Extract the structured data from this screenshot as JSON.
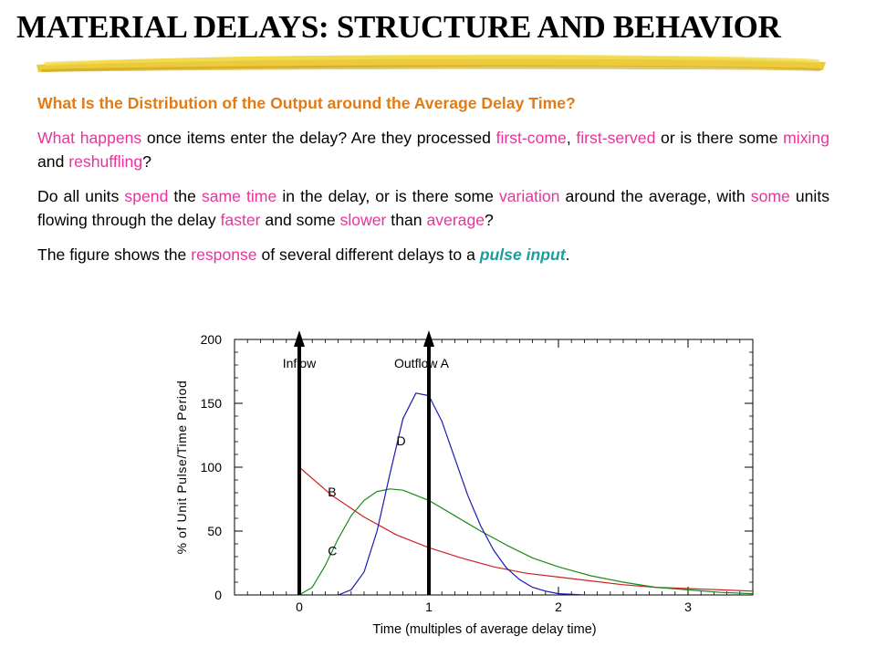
{
  "slide": {
    "title": "MATERIAL DELAYS: STRUCTURE AND BEHAVIOR",
    "accent_color": "#e8c21a",
    "question": "What Is the Distribution of the Output around the Average Delay Time?",
    "p1": [
      "What happens",
      " once items enter the delay? Are they processed ",
      "first-come",
      ", ",
      "first-served",
      " or is there some ",
      "mixing",
      " and ",
      "reshuffling",
      "?"
    ],
    "p2": [
      "Do all units ",
      "spend",
      " the ",
      "same time",
      " in the delay, or is there some ",
      "variation",
      " around the average, with ",
      "some",
      " units flowing through the delay ",
      "faster",
      " and some ",
      "slower",
      " than ",
      "average",
      "?"
    ],
    "p3": [
      "The figure shows the ",
      "response",
      " of several different delays to a ",
      "pulse input",
      "."
    ]
  },
  "chart_data": {
    "type": "line",
    "xlabel": "Time (multiples of average delay time)",
    "ylabel": "% of Unit Pulse/Time Period",
    "xlim": [
      -0.5,
      3.5
    ],
    "ylim": [
      0,
      200
    ],
    "xticks": [
      0,
      1,
      2,
      3
    ],
    "yticks": [
      0,
      50,
      100,
      150,
      200
    ],
    "grid": false,
    "series": [
      {
        "name": "B",
        "color": "#cc2222",
        "label_at": [
          0.22,
          77
        ],
        "x": [
          0,
          0.25,
          0.5,
          0.75,
          1,
          1.25,
          1.5,
          1.75,
          2,
          2.25,
          2.5,
          2.75,
          3,
          3.25,
          3.5
        ],
        "y": [
          100,
          78,
          61,
          47,
          37,
          29,
          22,
          17,
          14,
          11,
          8,
          6,
          5,
          4,
          3
        ]
      },
      {
        "name": "C",
        "color": "#1a8a1a",
        "label_at": [
          0.22,
          31
        ],
        "x": [
          0,
          0.1,
          0.2,
          0.3,
          0.4,
          0.5,
          0.6,
          0.7,
          0.8,
          1,
          1.2,
          1.4,
          1.6,
          1.8,
          2,
          2.25,
          2.5,
          2.75,
          3,
          3.25,
          3.5
        ],
        "y": [
          0,
          6,
          23,
          44,
          62,
          74,
          81,
          83,
          82,
          74,
          62,
          50,
          39,
          29,
          22,
          15,
          10,
          6,
          4,
          2,
          1
        ]
      },
      {
        "name": "D",
        "color": "#1a1ab0",
        "label_at": [
          0.75,
          117
        ],
        "x": [
          0.3,
          0.4,
          0.5,
          0.6,
          0.7,
          0.8,
          0.9,
          1,
          1.1,
          1.2,
          1.3,
          1.4,
          1.5,
          1.6,
          1.7,
          1.8,
          1.9,
          2,
          2.2
        ],
        "y": [
          0,
          4,
          18,
          50,
          95,
          138,
          158,
          156,
          136,
          107,
          78,
          54,
          35,
          21,
          12,
          6,
          3,
          1,
          0
        ]
      }
    ],
    "annotations": [
      {
        "label": "Inflow",
        "x": 0
      },
      {
        "label": "Outflow A",
        "x": 1
      }
    ]
  }
}
